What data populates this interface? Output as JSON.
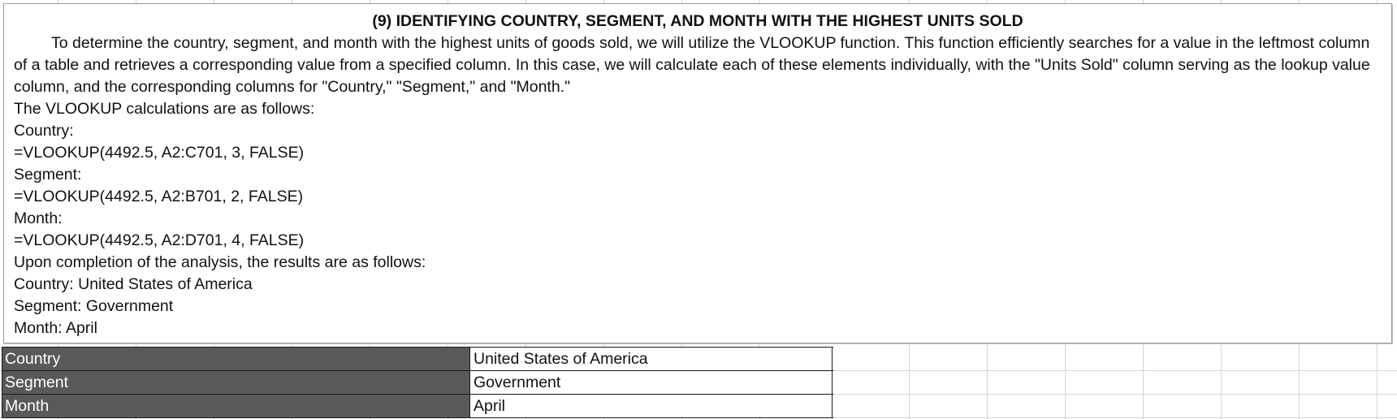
{
  "note": {
    "title": "(9) IDENTIFYING COUNTRY, SEGMENT, AND MONTH WITH THE HIGHEST UNITS SOLD",
    "paragraph": "To determine the country, segment, and month with the highest units of goods sold, we will utilize the VLOOKUP function. This function efficiently searches for a value in the leftmost column of a table and retrieves a corresponding value from a specified column. In this case, we will calculate each of these elements individually, with the \"Units Sold\" column serving as the lookup value column, and the corresponding columns for \"Country,\" \"Segment,\" and \"Month.\"",
    "lines": [
      "The VLOOKUP calculations are as follows:",
      "Country:",
      "=VLOOKUP(4492.5, A2:C701, 3, FALSE)",
      "Segment:",
      "=VLOOKUP(4492.5, A2:B701, 2, FALSE)",
      "Month:",
      "=VLOOKUP(4492.5, A2:D701, 4, FALSE)",
      "Upon completion of the analysis, the results are as follows:",
      "Country: United States of America",
      "Segment: Government",
      "Month: April"
    ]
  },
  "results": [
    {
      "label": "Country",
      "value": "United States of America"
    },
    {
      "label": "Segment",
      "value": "Government"
    },
    {
      "label": "Month",
      "value": "April"
    }
  ],
  "colors": {
    "label_fill": "#595959",
    "label_text": "#ffffff",
    "gridline": "#d4d4d4"
  }
}
